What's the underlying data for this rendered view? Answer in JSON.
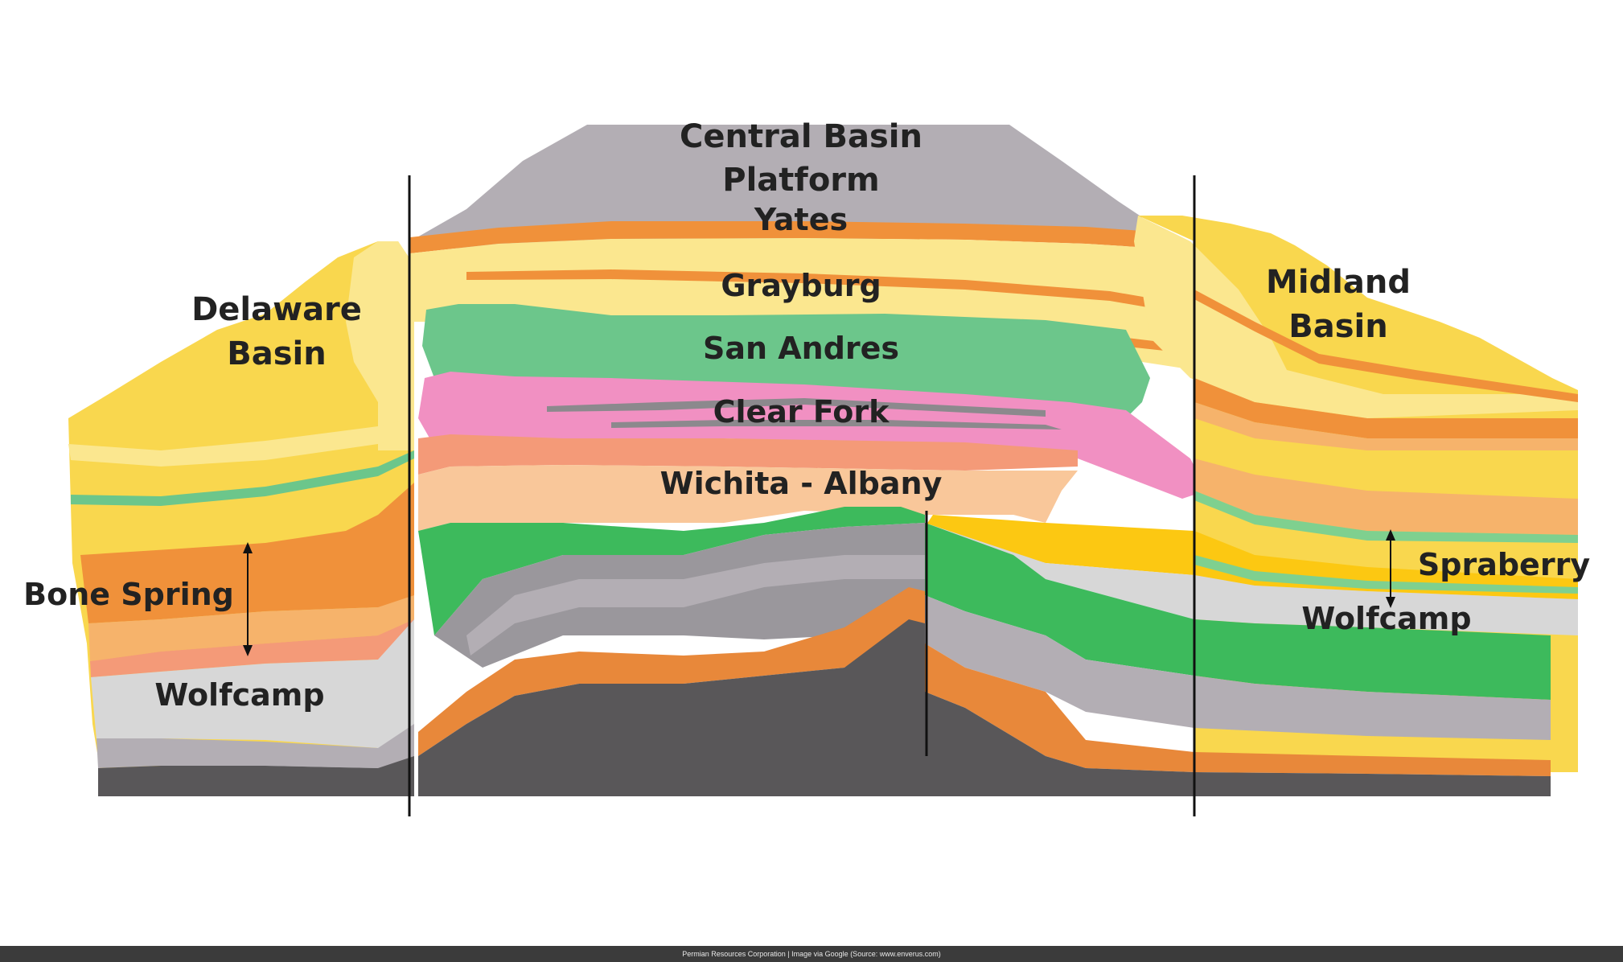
{
  "labels": {
    "central_basin_platform_line1": "Central Basin",
    "central_basin_platform_line2": "Platform",
    "yates": "Yates",
    "grayburg": "Grayburg",
    "san_andres": "San Andres",
    "clear_fork": "Clear Fork",
    "wichita_albany": "Wichita - Albany",
    "delaware_basin_line1": "Delaware",
    "delaware_basin_line2": "Basin",
    "midland_basin_line1": "Midland",
    "midland_basin_line2": "Basin",
    "bone_spring": "Bone Spring",
    "wolfcamp_left": "Wolfcamp",
    "spraberry": "Spraberry",
    "wolfcamp_right": "Wolfcamp"
  },
  "footer": {
    "credit": "Permian Resources Corporation | Image via Google (Source: www.enverus.com)"
  },
  "colors": {
    "yellow": "#f9d74e",
    "light_yellow": "#fbe78f",
    "orange": "#f0913a",
    "light_orange": "#f6b36b",
    "peach": "#f9c79a",
    "salmon": "#f49a78",
    "green": "#6cc68b",
    "bright_green": "#3dba5c",
    "pink": "#f190c2",
    "gray": "#b3aeb4",
    "light_gray": "#d7d7d7",
    "mid_gray": "#9a979c",
    "dark_gray": "#595759",
    "gold": "#fcc812"
  }
}
